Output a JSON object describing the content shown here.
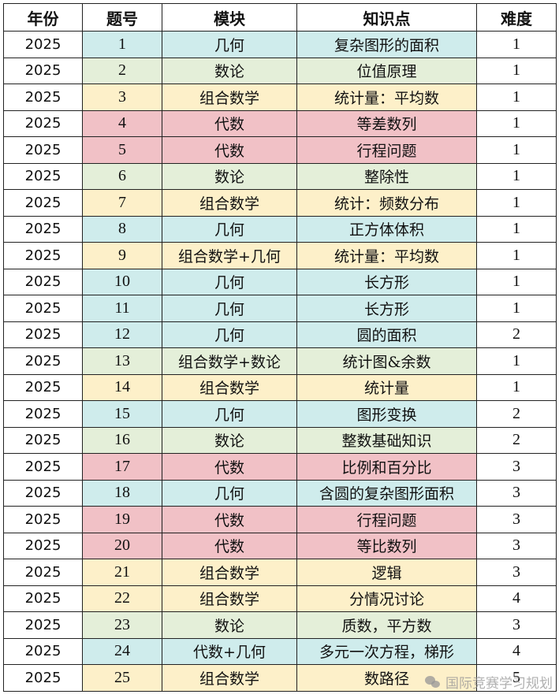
{
  "headers": [
    "年份",
    "题号",
    "模块",
    "知识点",
    "难度"
  ],
  "rows": [
    {
      "year": "2025",
      "num": "1",
      "module": "几何",
      "topic": "复杂图形的面积",
      "difficulty": "1",
      "color": "geo"
    },
    {
      "year": "2025",
      "num": "2",
      "module": "数论",
      "topic": "位值原理",
      "difficulty": "1",
      "color": "num"
    },
    {
      "year": "2025",
      "num": "3",
      "module": "组合数学",
      "topic": "统计量：平均数",
      "difficulty": "1",
      "color": "comb"
    },
    {
      "year": "2025",
      "num": "4",
      "module": "代数",
      "topic": "等差数列",
      "difficulty": "1",
      "color": "alg"
    },
    {
      "year": "2025",
      "num": "5",
      "module": "代数",
      "topic": "行程问题",
      "difficulty": "1",
      "color": "alg"
    },
    {
      "year": "2025",
      "num": "6",
      "module": "数论",
      "topic": "整除性",
      "difficulty": "1",
      "color": "num"
    },
    {
      "year": "2025",
      "num": "7",
      "module": "组合数学",
      "topic": "统计：频数分布",
      "difficulty": "1",
      "color": "comb"
    },
    {
      "year": "2025",
      "num": "8",
      "module": "几何",
      "topic": "正方体体积",
      "difficulty": "1",
      "color": "geo"
    },
    {
      "year": "2025",
      "num": "9",
      "module": "组合数学+几何",
      "topic": "统计量：平均数",
      "difficulty": "1",
      "color": "comb"
    },
    {
      "year": "2025",
      "num": "10",
      "module": "几何",
      "topic": "长方形",
      "difficulty": "1",
      "color": "geo"
    },
    {
      "year": "2025",
      "num": "11",
      "module": "几何",
      "topic": "长方形",
      "difficulty": "1",
      "color": "geo"
    },
    {
      "year": "2025",
      "num": "12",
      "module": "几何",
      "topic": "圆的面积",
      "difficulty": "2",
      "color": "geo"
    },
    {
      "year": "2025",
      "num": "13",
      "module": "组合数学+数论",
      "topic": "统计图&余数",
      "difficulty": "1",
      "color": "num"
    },
    {
      "year": "2025",
      "num": "14",
      "module": "组合数学",
      "topic": "统计量",
      "difficulty": "1",
      "color": "comb"
    },
    {
      "year": "2025",
      "num": "15",
      "module": "几何",
      "topic": "图形变换",
      "difficulty": "2",
      "color": "geo"
    },
    {
      "year": "2025",
      "num": "16",
      "module": "数论",
      "topic": "整数基础知识",
      "difficulty": "2",
      "color": "num"
    },
    {
      "year": "2025",
      "num": "17",
      "module": "代数",
      "topic": "比例和百分比",
      "difficulty": "3",
      "color": "alg"
    },
    {
      "year": "2025",
      "num": "18",
      "module": "几何",
      "topic": "含圆的复杂图形面积",
      "difficulty": "3",
      "color": "geo"
    },
    {
      "year": "2025",
      "num": "19",
      "module": "代数",
      "topic": "行程问题",
      "difficulty": "3",
      "color": "alg"
    },
    {
      "year": "2025",
      "num": "20",
      "module": "代数",
      "topic": "等比数列",
      "difficulty": "3",
      "color": "alg"
    },
    {
      "year": "2025",
      "num": "21",
      "module": "组合数学",
      "topic": "逻辑",
      "difficulty": "3",
      "color": "comb"
    },
    {
      "year": "2025",
      "num": "22",
      "module": "组合数学",
      "topic": "分情况讨论",
      "difficulty": "4",
      "color": "comb"
    },
    {
      "year": "2025",
      "num": "23",
      "module": "数论",
      "topic": "质数，平方数",
      "difficulty": "3",
      "color": "num"
    },
    {
      "year": "2025",
      "num": "24",
      "module": "代数+几何",
      "topic": "多元一次方程，梯形",
      "difficulty": "4",
      "color": "geo"
    },
    {
      "year": "2025",
      "num": "25",
      "module": "组合数学",
      "topic": "数路径",
      "difficulty": "5",
      "color": "comb"
    }
  ],
  "watermark": "国际竞赛学习规划",
  "watermark_icon": "wechat-icon"
}
